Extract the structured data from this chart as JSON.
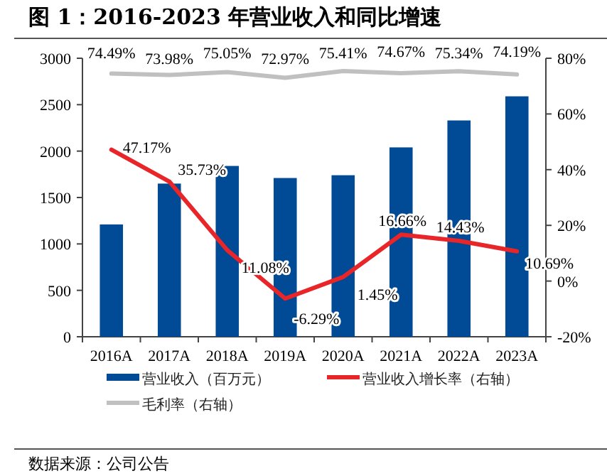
{
  "chart_data": {
    "type": "bar",
    "title": "图 1：2016-2023 年营业收入和同比增速",
    "categories": [
      "2016A",
      "2017A",
      "2018A",
      "2019A",
      "2020A",
      "2021A",
      "2022A",
      "2023A"
    ],
    "series": [
      {
        "name": "营业收入（百万元）",
        "color": "#004a96",
        "values": [
          1210,
          1650,
          1840,
          1710,
          1740,
          2040,
          2330,
          2590
        ]
      },
      {
        "name": "营业收入增长率（右轴）",
        "type": "line",
        "axis": "y2",
        "color": "#e8262a",
        "values": [
          47.17,
          35.73,
          11.08,
          -6.29,
          1.45,
          16.66,
          14.43,
          10.69
        ],
        "value_labels": [
          "47.17%",
          "35.73%",
          "11.08%",
          "-6.29%",
          "1.45%",
          "16.66%",
          "14.43%",
          "10.69%"
        ]
      },
      {
        "name": "毛利率（右轴）",
        "type": "line",
        "axis": "y2",
        "color": "#c0c0c0",
        "values": [
          74.49,
          73.98,
          75.05,
          72.97,
          75.41,
          74.67,
          75.34,
          74.19
        ],
        "value_labels": [
          "74.49%",
          "73.98%",
          "75.05%",
          "72.97%",
          "75.41%",
          "74.67%",
          "75.34%",
          "74.19%"
        ]
      }
    ],
    "ylim": [
      0,
      3000
    ],
    "yticks": [
      0,
      500,
      1000,
      1500,
      2000,
      2500,
      3000
    ],
    "y2lim": [
      -20,
      80
    ],
    "y2ticks": [
      {
        "value": -20,
        "label": "-20%"
      },
      {
        "value": 0,
        "label": "0%"
      },
      {
        "value": 20,
        "label": "20%"
      },
      {
        "value": 40,
        "label": "40%"
      },
      {
        "value": 60,
        "label": "60%"
      },
      {
        "value": 80,
        "label": "80%"
      }
    ],
    "grid": false,
    "legend": "bottom",
    "annotations": [
      "数据来源：公司公告"
    ]
  }
}
